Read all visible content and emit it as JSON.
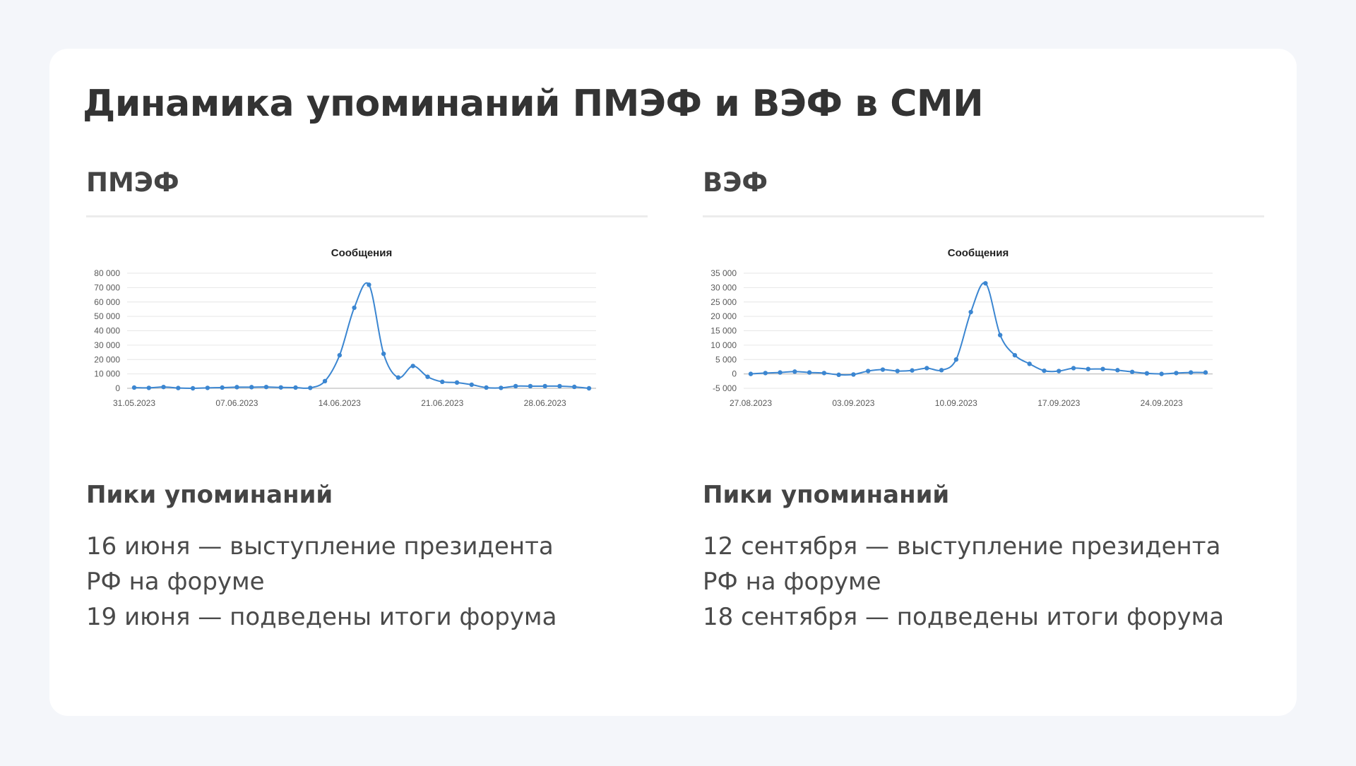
{
  "page": {
    "title": "Динамика упоминаний ПМЭФ и ВЭФ в СМИ"
  },
  "panels": [
    {
      "title": "ПМЭФ",
      "peaks_title": "Пики упоминаний",
      "peaks_lines": [
        "16 июня — выступление президента",
        "РФ на форуме",
        "19 июня — подведены итоги форума"
      ]
    },
    {
      "title": "ВЭФ",
      "peaks_title": "Пики упоминаний",
      "peaks_lines": [
        "12 сентября — выступление президента",
        "РФ на форуме",
        "18 сентября — подведены итоги форума"
      ]
    }
  ],
  "chart_data": [
    {
      "type": "line",
      "title": "Сообщения",
      "xlabel": "",
      "ylabel": "",
      "ylim": [
        0,
        80000
      ],
      "yticks": [
        0,
        10000,
        20000,
        30000,
        40000,
        50000,
        60000,
        70000,
        80000
      ],
      "ytick_labels": [
        "0",
        "10 000",
        "20 000",
        "30 000",
        "40 000",
        "50 000",
        "60 000",
        "70 000",
        "80 000"
      ],
      "x_start": "2023-05-31",
      "xtick_labels": [
        "31.05.2023",
        "07.06.2023",
        "14.06.2023",
        "21.06.2023",
        "28.06.2023"
      ],
      "grid": true,
      "legend": "none",
      "smooth": true,
      "color": "#3b86d1",
      "x": [
        "2023-05-31",
        "2023-06-01",
        "2023-06-02",
        "2023-06-03",
        "2023-06-04",
        "2023-06-05",
        "2023-06-06",
        "2023-06-07",
        "2023-06-08",
        "2023-06-09",
        "2023-06-10",
        "2023-06-11",
        "2023-06-12",
        "2023-06-13",
        "2023-06-14",
        "2023-06-15",
        "2023-06-16",
        "2023-06-17",
        "2023-06-18",
        "2023-06-19",
        "2023-06-20",
        "2023-06-21",
        "2023-06-22",
        "2023-06-23",
        "2023-06-24",
        "2023-06-25",
        "2023-06-26",
        "2023-06-27",
        "2023-06-28",
        "2023-06-29",
        "2023-06-30",
        "2023-07-01"
      ],
      "values": [
        500,
        300,
        900,
        200,
        0,
        300,
        500,
        800,
        800,
        900,
        600,
        500,
        300,
        5000,
        23000,
        56000,
        72000,
        24000,
        7500,
        15500,
        8000,
        4500,
        4000,
        2500,
        500,
        300,
        1500,
        1500,
        1500,
        1500,
        1000,
        0
      ]
    },
    {
      "type": "line",
      "title": "Сообщения",
      "xlabel": "",
      "ylabel": "",
      "ylim": [
        -5000,
        35000
      ],
      "yticks": [
        -5000,
        0,
        5000,
        10000,
        15000,
        20000,
        25000,
        30000,
        35000
      ],
      "ytick_labels": [
        "-5 000",
        "0",
        "5 000",
        "10 000",
        "15 000",
        "20 000",
        "25 000",
        "30 000",
        "35 000"
      ],
      "x_start": "2023-08-27",
      "xtick_labels": [
        "27.08.2023",
        "03.09.2023",
        "10.09.2023",
        "17.09.2023",
        "24.09.2023"
      ],
      "grid": true,
      "legend": "none",
      "smooth": true,
      "color": "#3b86d1",
      "x": [
        "2023-08-27",
        "2023-08-28",
        "2023-08-29",
        "2023-08-30",
        "2023-08-31",
        "2023-09-01",
        "2023-09-02",
        "2023-09-03",
        "2023-09-04",
        "2023-09-05",
        "2023-09-06",
        "2023-09-07",
        "2023-09-08",
        "2023-09-09",
        "2023-09-10",
        "2023-09-11",
        "2023-09-12",
        "2023-09-13",
        "2023-09-14",
        "2023-09-15",
        "2023-09-16",
        "2023-09-17",
        "2023-09-18",
        "2023-09-19",
        "2023-09-20",
        "2023-09-21",
        "2023-09-22",
        "2023-09-23",
        "2023-09-24",
        "2023-09-25",
        "2023-09-26",
        "2023-09-27"
      ],
      "values": [
        0,
        300,
        500,
        800,
        500,
        300,
        -300,
        -200,
        1000,
        1500,
        1000,
        1200,
        2000,
        1300,
        5000,
        21500,
        31500,
        13500,
        6500,
        3500,
        1100,
        1000,
        2000,
        1700,
        1700,
        1300,
        700,
        200,
        0,
        300,
        500,
        500
      ]
    }
  ]
}
